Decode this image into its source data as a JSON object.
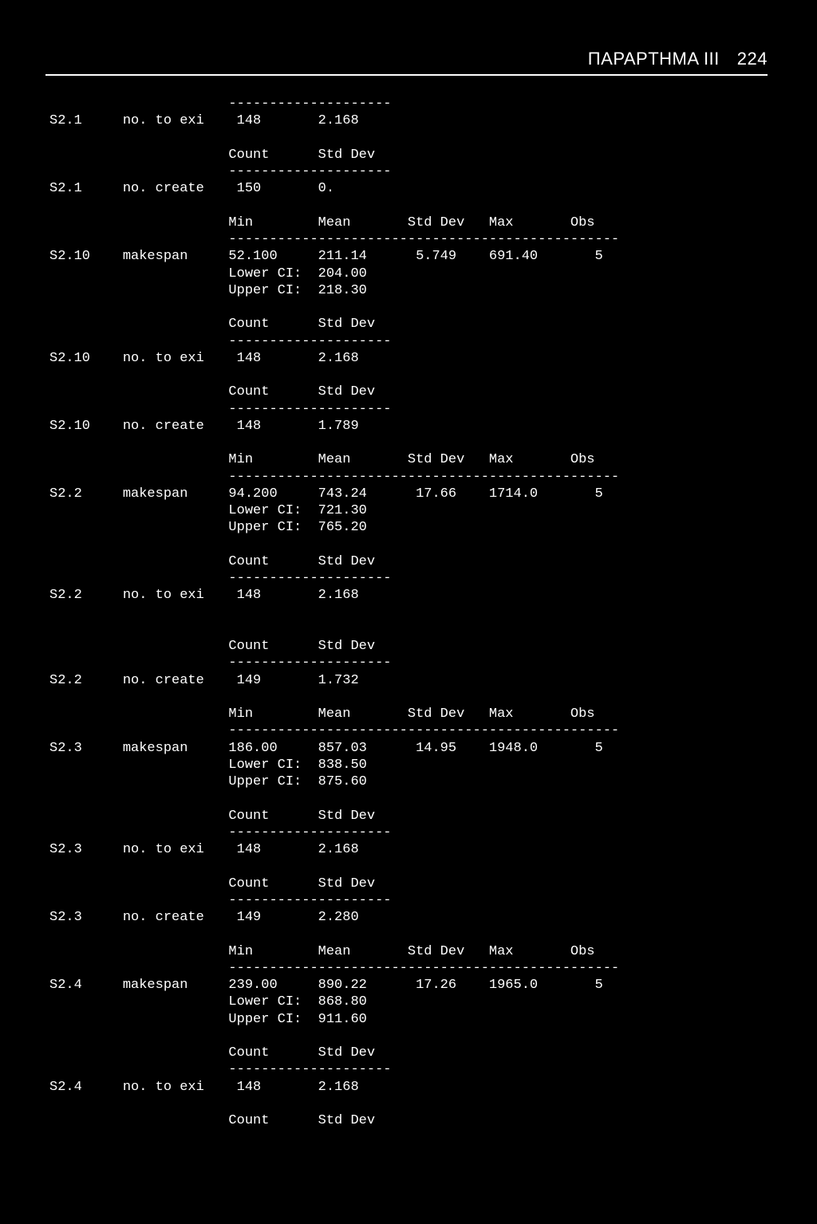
{
  "header": {
    "title": "ΠΑΡΑΡΤΗΜΑ ΙΙΙ",
    "page": "224"
  },
  "layout": {
    "col_id": 0,
    "col_label": 9,
    "col_c1": 22,
    "col_c2": 33,
    "col_c3": 44,
    "col_c4": 54,
    "col_c5": 64,
    "sep_short_len": 20,
    "sep_long_len": 48
  },
  "labels": {
    "count": "Count",
    "stddev": "Std Dev",
    "min": "Min",
    "mean": "Mean",
    "max": "Max",
    "obs": "Obs",
    "lowerci": "Lower CI:",
    "upperci": "Upper CI:"
  },
  "blocks": [
    {
      "type": "sep_short",
      "above_id": "S2.1",
      "above_label": "no. to exi"
    },
    {
      "type": "count_row",
      "id": "S2.1",
      "label": "no. to exi",
      "count": "148",
      "stddev": "2.168",
      "trailing_header": true
    },
    {
      "type": "sep_short"
    },
    {
      "type": "count_row",
      "id": "S2.1",
      "label": "no. create",
      "count": "150",
      "stddev": "0.",
      "trailing_header": true,
      "header_kind": "stats"
    },
    {
      "type": "sep_long"
    },
    {
      "type": "stats_row",
      "id": "S2.10",
      "label": "makespan",
      "min": "52.100",
      "mean": "211.14",
      "stddev": "5.749",
      "max": "691.40",
      "obs": "5",
      "lower": "204.00",
      "upper": "218.30",
      "trailing_header": true
    },
    {
      "type": "sep_short"
    },
    {
      "type": "count_row",
      "id": "S2.10",
      "label": "no. to exi",
      "count": "148",
      "stddev": "2.168",
      "trailing_header": true
    },
    {
      "type": "sep_short"
    },
    {
      "type": "count_row",
      "id": "S2.10",
      "label": "no. create",
      "count": "148",
      "stddev": "1.789",
      "trailing_header": true,
      "header_kind": "stats"
    },
    {
      "type": "sep_long"
    },
    {
      "type": "stats_row",
      "id": "S2.2",
      "label": "makespan",
      "min": "94.200",
      "mean": "743.24",
      "stddev": "17.66",
      "max": "1714.0",
      "obs": "5",
      "lower": "721.30",
      "upper": "765.20",
      "trailing_header": true
    },
    {
      "type": "sep_short"
    },
    {
      "type": "count_row",
      "id": "S2.2",
      "label": "no. to exi",
      "count": "148",
      "stddev": "2.168",
      "blank_after": true,
      "trailing_header": true
    },
    {
      "type": "sep_short"
    },
    {
      "type": "count_row",
      "id": "S2.2",
      "label": "no. create",
      "count": "149",
      "stddev": "1.732",
      "trailing_header": true,
      "header_kind": "stats"
    },
    {
      "type": "sep_long"
    },
    {
      "type": "stats_row",
      "id": "S2.3",
      "label": "makespan",
      "min": "186.00",
      "mean": "857.03",
      "stddev": "14.95",
      "max": "1948.0",
      "obs": "5",
      "lower": "838.50",
      "upper": "875.60",
      "trailing_header": true
    },
    {
      "type": "sep_short"
    },
    {
      "type": "count_row",
      "id": "S2.3",
      "label": "no. to exi",
      "count": "148",
      "stddev": "2.168",
      "trailing_header": true
    },
    {
      "type": "sep_short"
    },
    {
      "type": "count_row",
      "id": "S2.3",
      "label": "no. create",
      "count": "149",
      "stddev": "2.280",
      "trailing_header": true,
      "header_kind": "stats"
    },
    {
      "type": "sep_long"
    },
    {
      "type": "stats_row",
      "id": "S2.4",
      "label": "makespan",
      "min": "239.00",
      "mean": "890.22",
      "stddev": "17.26",
      "max": "1965.0",
      "obs": "5",
      "lower": "868.80",
      "upper": "911.60",
      "trailing_header": true
    },
    {
      "type": "sep_short"
    },
    {
      "type": "count_row",
      "id": "S2.4",
      "label": "no. to exi",
      "count": "148",
      "stddev": "2.168",
      "trailing_header": true,
      "no_sep_after": true
    }
  ]
}
